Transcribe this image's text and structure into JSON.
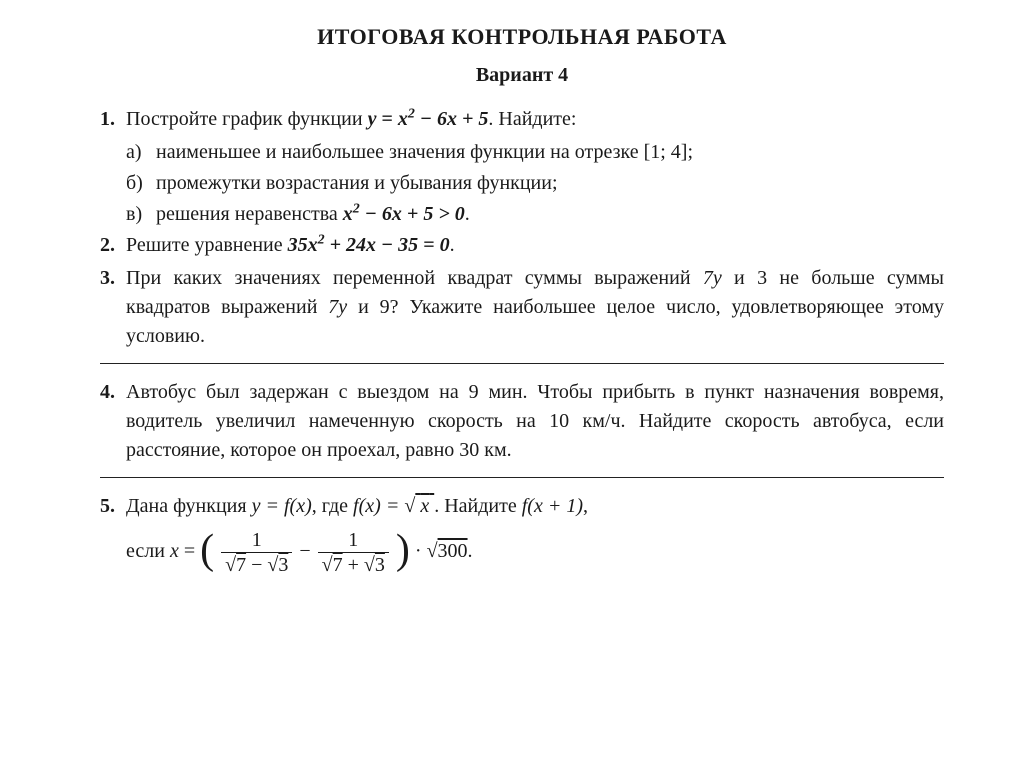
{
  "title": "ИТОГОВАЯ КОНТРОЛЬНАЯ РАБОТА",
  "variant": "Вариант 4",
  "p1": {
    "num": "1.",
    "lead": "Постройте график функции ",
    "func_lhs": "y",
    "func_rhs": "x² − 6x + 5",
    "tail": ". Найдите:",
    "a_num": "а)",
    "a_text": "наименьшее и наибольшее значения функции на отрезке [1; 4];",
    "b_num": "б)",
    "b_text": "промежутки возрастания и убывания функции;",
    "c_num": "в)",
    "c_lead": "решения неравенства ",
    "c_ineq": "x² − 6x + 5 > 0",
    "c_tail": "."
  },
  "p2": {
    "num": "2.",
    "lead": "Решите уравнение ",
    "eq": "35x² + 24x − 35 = 0",
    "tail": "."
  },
  "p3": {
    "num": "3.",
    "text1": "При каких значениях переменной квадрат суммы выражений ",
    "e1": "7y",
    "text2": " и ",
    "e2": "3",
    "text3": " не больше суммы квадратов выражений ",
    "e3": "7y",
    "text4": " и ",
    "e4": "9",
    "text5": "? Укажите наибольшее целое число, удовлетворяющее этому условию."
  },
  "p4": {
    "num": "4.",
    "text": "Автобус был задержан с выездом на 9 мин. Чтобы прибыть в пункт назначения вовремя, водитель увеличил намеченную скорость на 10 км/ч. Найдите скорость автобуса, если расстояние, которое он проехал, равно 30 км."
  },
  "p5": {
    "num": "5.",
    "lead": "Дана функция ",
    "f_def1": "y = f(x)",
    "mid1": ", где ",
    "f_def2_lhs": "f(x)",
    "sqrt_x": "x",
    "mid2": ". Найдите ",
    "target": "f(x + 1)",
    "tail": ",",
    "line2_lead": "если ",
    "x_eq": "x",
    "eq_sign": " = ",
    "num1": "1",
    "den1_a": "7",
    "den1_b": "3",
    "minus": " − ",
    "num2": "1",
    "den2_a": "7",
    "den2_b": "3",
    "dot": " · ",
    "sqrt300": "300",
    "period": "."
  }
}
